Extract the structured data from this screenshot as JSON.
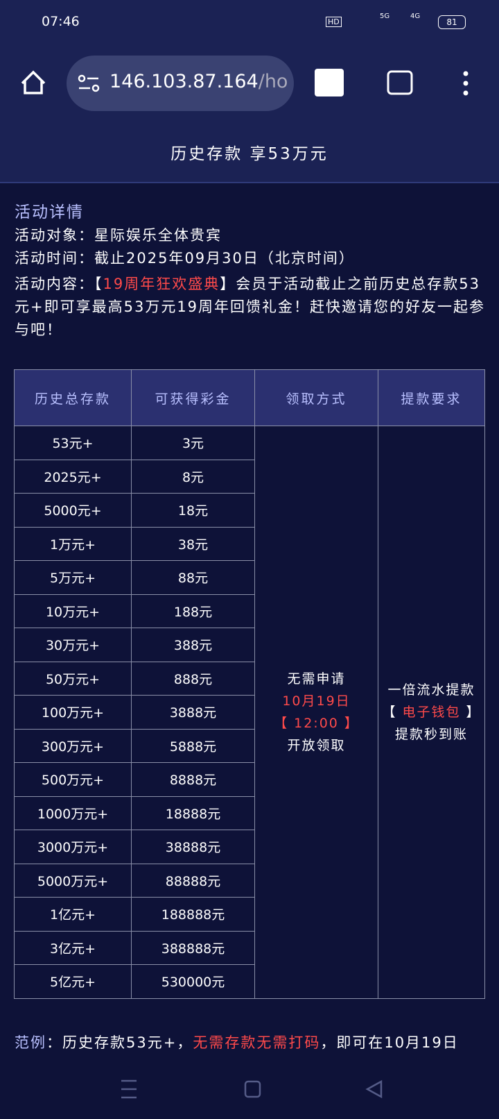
{
  "status_bar": {
    "time": "07:46",
    "hd": "HD",
    "sig1": "5G",
    "sig2": "4G",
    "battery": "81"
  },
  "browser": {
    "url_host": "146.103.87.164",
    "url_path": "/ho"
  },
  "header": {
    "title": "历史存款 享53万元"
  },
  "details": {
    "heading": "活动详情",
    "target": "活动对象：星际娱乐全体贵宾",
    "time": "活动时间：截止2025年09月30日（北京时间）",
    "content_prefix": "活动内容：【",
    "content_highlight": "19周年狂欢盛典",
    "content_rest": "】会员于活动截止之前历史总存款53元+即可享最高53万元19周年回馈礼金！赶快邀请您的好友一起参与吧！"
  },
  "table": {
    "headers": [
      "历史总存款",
      "可获得彩金",
      "领取方式",
      "提款要求"
    ],
    "rows": [
      [
        "53元+",
        "3元"
      ],
      [
        "2025元+",
        "8元"
      ],
      [
        "5000元+",
        "18元"
      ],
      [
        "1万元+",
        "38元"
      ],
      [
        "5万元+",
        "88元"
      ],
      [
        "10万元+",
        "188元"
      ],
      [
        "30万元+",
        "388元"
      ],
      [
        "50万元+",
        "888元"
      ],
      [
        "100万元+",
        "3888元"
      ],
      [
        "300万元+",
        "5888元"
      ],
      [
        "500万元+",
        "8888元"
      ],
      [
        "1000万元+",
        "18888元"
      ],
      [
        "3000万元+",
        "38888元"
      ],
      [
        "5000万元+",
        "88888元"
      ],
      [
        "1亿元+",
        "188888元"
      ],
      [
        "3亿元+",
        "388888元"
      ],
      [
        "5亿元+",
        "530000元"
      ]
    ],
    "method": [
      "无需申请",
      "10月19日",
      "【 12:00 】",
      "开放领取"
    ],
    "requirement": {
      "line1": "一倍流水提款",
      "open": "【 ",
      "wallet": "电子钱包",
      "close": " 】",
      "line3": "提款秒到账"
    }
  },
  "example": {
    "label": "范例",
    "colon": "：历史存款53元+，",
    "highlight": "无需存款无需打码",
    "rest": "，即可在10月19日"
  }
}
